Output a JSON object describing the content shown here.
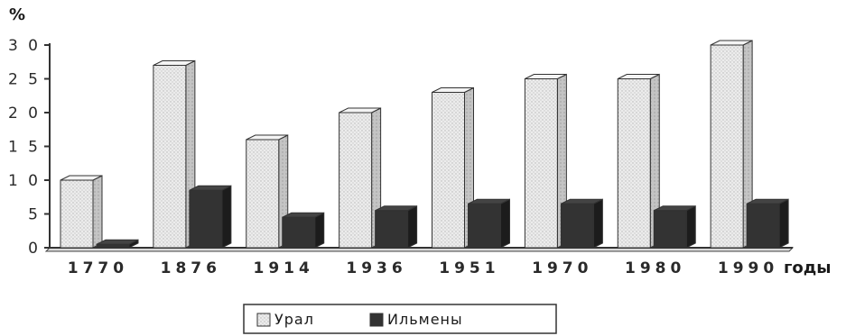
{
  "chart_data": {
    "type": "bar",
    "title": "",
    "ylabel": "%",
    "xlabel": "годы",
    "ylim": [
      0,
      30
    ],
    "yticks": [
      "0",
      "5",
      "1 0",
      "1 5",
      "2 0",
      "2 5",
      "3 0"
    ],
    "categories": [
      "1770",
      "1876",
      "1914",
      "1936",
      "1951",
      "1970",
      "1980",
      "1990"
    ],
    "series": [
      {
        "name": "Урал",
        "values": [
          10,
          27,
          16,
          20,
          23,
          25,
          25,
          30
        ]
      },
      {
        "name": "Ильмены",
        "values": [
          0.5,
          8.5,
          4.5,
          5.5,
          6.5,
          6.5,
          5.5,
          6.5
        ]
      }
    ],
    "legend_position": "bottom-center",
    "grid": false,
    "colors": {
      "series1_fill": "#e9e9e9",
      "series1_side": "#bdbdbd",
      "series2_fill": "#333333",
      "series2_side": "#1c1c1c"
    }
  }
}
